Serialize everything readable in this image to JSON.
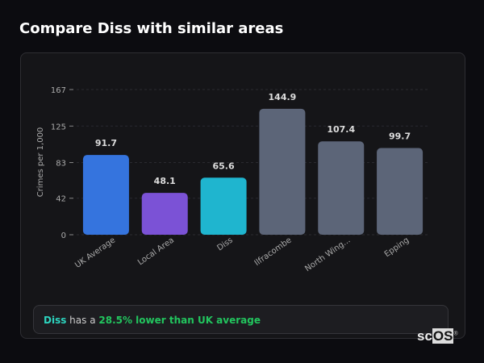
{
  "title": "Compare Diss with similar areas",
  "chart_data": {
    "type": "bar",
    "ylabel": "Crimes per 1,000",
    "ylim": [
      0,
      167
    ],
    "yticks": [
      0,
      42,
      83,
      125,
      167
    ],
    "grid": true,
    "categories": [
      "UK Average",
      "Local Area",
      "Diss",
      "Ilfracombe",
      "North Wing...",
      "Epping"
    ],
    "values": [
      91.7,
      48.1,
      65.6,
      144.9,
      107.4,
      99.7
    ],
    "labels": [
      "91.7",
      "48.1",
      "65.6",
      "144.9",
      "107.4",
      "99.7"
    ],
    "colors": [
      "#3574de",
      "#7b52d6",
      "#1fb5cf",
      "#5c6578",
      "#5c6578",
      "#5c6578"
    ]
  },
  "summary": {
    "place": "Diss",
    "middle": " has a ",
    "highlight": "28.5% lower than UK average",
    "place_color": "#2dd4bf",
    "highlight_color": "#22c55e"
  },
  "logo": {
    "text_a": "sc",
    "text_b": "OS",
    "mark": "®"
  }
}
